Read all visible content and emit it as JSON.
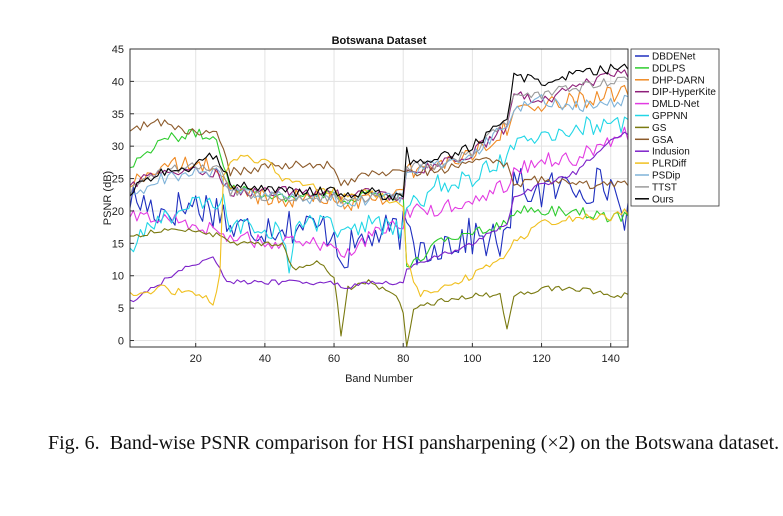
{
  "figure": {
    "caption_label": "Fig. 6.",
    "caption_text": "Band-wise PSNR comparison for HSI pansharpening (×2) on the Botswana dataset."
  },
  "chart_data": {
    "type": "line",
    "title": "Botswana Dataset",
    "xlabel": "Band Number",
    "ylabel": "PSNR (dB)",
    "xlim": [
      1,
      145
    ],
    "ylim": [
      -1,
      45
    ],
    "xticks": [
      20,
      40,
      60,
      80,
      100,
      120,
      140
    ],
    "yticks": [
      0,
      5,
      10,
      15,
      20,
      25,
      30,
      35,
      40,
      45
    ],
    "grid": true,
    "legend_position": "right-outside-top",
    "series": [
      {
        "name": "DBDENet",
        "color": "#1f2fbf",
        "knots": [
          [
            1,
            22
          ],
          [
            10,
            20
          ],
          [
            20,
            21
          ],
          [
            28,
            20
          ],
          [
            30,
            17
          ],
          [
            45,
            18
          ],
          [
            60,
            17
          ],
          [
            62,
            13
          ],
          [
            70,
            16
          ],
          [
            80,
            17
          ],
          [
            84,
            14
          ],
          [
            90,
            15
          ],
          [
            100,
            16
          ],
          [
            110,
            15
          ],
          [
            112,
            24
          ],
          [
            120,
            23
          ],
          [
            130,
            24
          ],
          [
            140,
            24
          ],
          [
            145,
            19
          ]
        ],
        "noise": 3.0
      },
      {
        "name": "DDLPS",
        "color": "#2ecc2e",
        "knots": [
          [
            1,
            27
          ],
          [
            10,
            31
          ],
          [
            20,
            32
          ],
          [
            26,
            31
          ],
          [
            30,
            24
          ],
          [
            45,
            22
          ],
          [
            60,
            23
          ],
          [
            62,
            21
          ],
          [
            70,
            23
          ],
          [
            80,
            22
          ],
          [
            81,
            11
          ],
          [
            90,
            15
          ],
          [
            100,
            17
          ],
          [
            110,
            18
          ],
          [
            112,
            20
          ],
          [
            120,
            20
          ],
          [
            130,
            20
          ],
          [
            140,
            19
          ],
          [
            145,
            19
          ]
        ],
        "noise": 0.8
      },
      {
        "name": "DHP-DARN",
        "color": "#f08a24",
        "knots": [
          [
            1,
            24
          ],
          [
            10,
            27
          ],
          [
            20,
            27
          ],
          [
            26,
            27
          ],
          [
            30,
            23
          ],
          [
            45,
            22
          ],
          [
            60,
            22
          ],
          [
            62,
            21
          ],
          [
            70,
            22
          ],
          [
            80,
            23
          ],
          [
            81,
            26
          ],
          [
            90,
            27
          ],
          [
            100,
            29
          ],
          [
            110,
            33
          ],
          [
            112,
            36
          ],
          [
            120,
            36
          ],
          [
            130,
            37
          ],
          [
            140,
            38
          ],
          [
            145,
            38
          ]
        ],
        "noise": 1.4
      },
      {
        "name": "DIP-HyperKite",
        "color": "#8e1f7a",
        "knots": [
          [
            1,
            24
          ],
          [
            10,
            26
          ],
          [
            20,
            26
          ],
          [
            26,
            26
          ],
          [
            30,
            23
          ],
          [
            45,
            23
          ],
          [
            60,
            23
          ],
          [
            62,
            22
          ],
          [
            70,
            23
          ],
          [
            80,
            22
          ],
          [
            81,
            26
          ],
          [
            90,
            27
          ],
          [
            100,
            29
          ],
          [
            110,
            33
          ],
          [
            112,
            38
          ],
          [
            120,
            37
          ],
          [
            130,
            39
          ],
          [
            140,
            41
          ],
          [
            145,
            41
          ]
        ],
        "noise": 0.8
      },
      {
        "name": "DMLD-Net",
        "color": "#e23be2",
        "knots": [
          [
            1,
            19
          ],
          [
            10,
            19
          ],
          [
            20,
            18
          ],
          [
            30,
            16
          ],
          [
            45,
            15
          ],
          [
            60,
            15
          ],
          [
            62,
            13
          ],
          [
            70,
            16
          ],
          [
            80,
            18
          ],
          [
            81,
            20
          ],
          [
            90,
            20
          ],
          [
            100,
            22
          ],
          [
            110,
            24
          ],
          [
            112,
            26
          ],
          [
            120,
            28
          ],
          [
            130,
            28
          ],
          [
            140,
            31
          ],
          [
            145,
            32
          ]
        ],
        "noise": 1.2
      },
      {
        "name": "GPPNN",
        "color": "#22d6e6",
        "knots": [
          [
            1,
            14
          ],
          [
            10,
            19
          ],
          [
            20,
            21
          ],
          [
            28,
            21
          ],
          [
            30,
            18
          ],
          [
            45,
            17
          ],
          [
            47,
            10
          ],
          [
            49,
            18
          ],
          [
            60,
            18
          ],
          [
            62,
            16
          ],
          [
            70,
            18
          ],
          [
            80,
            17
          ],
          [
            81,
            20
          ],
          [
            90,
            24
          ],
          [
            100,
            25
          ],
          [
            110,
            28
          ],
          [
            112,
            31
          ],
          [
            120,
            32
          ],
          [
            130,
            33
          ],
          [
            140,
            33
          ],
          [
            145,
            33
          ]
        ],
        "noise": 1.6
      },
      {
        "name": "GS",
        "color": "#7a7a10",
        "knots": [
          [
            1,
            16
          ],
          [
            10,
            17
          ],
          [
            20,
            17
          ],
          [
            28,
            16
          ],
          [
            30,
            15
          ],
          [
            45,
            15
          ],
          [
            48,
            11
          ],
          [
            55,
            12
          ],
          [
            60,
            10
          ],
          [
            62,
            1
          ],
          [
            64,
            8
          ],
          [
            70,
            9
          ],
          [
            78,
            7
          ],
          [
            80,
            4
          ],
          [
            81,
            -1
          ],
          [
            83,
            5
          ],
          [
            90,
            6
          ],
          [
            100,
            7
          ],
          [
            108,
            7
          ],
          [
            110,
            2
          ],
          [
            112,
            7
          ],
          [
            120,
            8
          ],
          [
            130,
            8
          ],
          [
            140,
            7
          ],
          [
            145,
            7
          ]
        ],
        "noise": 0.4
      },
      {
        "name": "GSA",
        "color": "#8c5a2a",
        "knots": [
          [
            1,
            32
          ],
          [
            8,
            34
          ],
          [
            20,
            32
          ],
          [
            26,
            32
          ],
          [
            30,
            26
          ],
          [
            45,
            27
          ],
          [
            60,
            27
          ],
          [
            62,
            24
          ],
          [
            70,
            26
          ],
          [
            80,
            26
          ],
          [
            81,
            26
          ],
          [
            90,
            26
          ],
          [
            100,
            28
          ],
          [
            110,
            27
          ],
          [
            112,
            24
          ],
          [
            120,
            25
          ],
          [
            130,
            24
          ],
          [
            140,
            24
          ],
          [
            145,
            24
          ]
        ],
        "noise": 0.7
      },
      {
        "name": "Indusion",
        "color": "#7d22c9",
        "knots": [
          [
            1,
            6
          ],
          [
            10,
            9
          ],
          [
            20,
            12
          ],
          [
            25,
            13
          ],
          [
            28,
            10
          ],
          [
            30,
            9
          ],
          [
            45,
            9
          ],
          [
            60,
            9
          ],
          [
            62,
            8
          ],
          [
            70,
            9
          ],
          [
            80,
            9
          ],
          [
            81,
            11
          ],
          [
            90,
            13
          ],
          [
            100,
            15
          ],
          [
            110,
            18
          ],
          [
            112,
            22
          ],
          [
            120,
            24
          ],
          [
            130,
            26
          ],
          [
            140,
            31
          ],
          [
            145,
            32
          ]
        ],
        "noise": 0.4
      },
      {
        "name": "PLRDiff",
        "color": "#f0c020",
        "knots": [
          [
            1,
            7
          ],
          [
            10,
            8
          ],
          [
            20,
            7
          ],
          [
            25,
            6
          ],
          [
            27,
            10
          ],
          [
            28,
            25
          ],
          [
            30,
            28
          ],
          [
            40,
            28
          ],
          [
            45,
            25
          ],
          [
            60,
            23
          ],
          [
            62,
            22
          ],
          [
            70,
            23
          ],
          [
            80,
            21
          ],
          [
            81,
            12
          ],
          [
            85,
            7
          ],
          [
            90,
            8
          ],
          [
            100,
            10
          ],
          [
            110,
            13
          ],
          [
            112,
            15
          ],
          [
            120,
            18
          ],
          [
            130,
            19
          ],
          [
            140,
            19
          ],
          [
            145,
            20
          ]
        ],
        "noise": 0.6
      },
      {
        "name": "PSDip",
        "color": "#7fb3d9",
        "knots": [
          [
            1,
            22
          ],
          [
            10,
            25
          ],
          [
            20,
            26
          ],
          [
            26,
            26
          ],
          [
            30,
            23
          ],
          [
            45,
            22
          ],
          [
            60,
            22
          ],
          [
            62,
            21
          ],
          [
            70,
            22
          ],
          [
            80,
            22
          ],
          [
            81,
            26
          ],
          [
            90,
            27
          ],
          [
            100,
            29
          ],
          [
            110,
            33
          ],
          [
            112,
            36
          ],
          [
            120,
            37
          ],
          [
            130,
            36
          ],
          [
            140,
            37
          ],
          [
            145,
            37
          ]
        ],
        "noise": 1.0
      },
      {
        "name": "TTST",
        "color": "#9a9a9a",
        "knots": [
          [
            1,
            23
          ],
          [
            10,
            26
          ],
          [
            20,
            27
          ],
          [
            26,
            27
          ],
          [
            30,
            23
          ],
          [
            45,
            22
          ],
          [
            60,
            22
          ],
          [
            62,
            21
          ],
          [
            70,
            22
          ],
          [
            80,
            22
          ],
          [
            81,
            27
          ],
          [
            90,
            27
          ],
          [
            100,
            29
          ],
          [
            110,
            34
          ],
          [
            112,
            38
          ],
          [
            120,
            38
          ],
          [
            130,
            39
          ],
          [
            140,
            40
          ],
          [
            145,
            40
          ]
        ],
        "noise": 0.8
      },
      {
        "name": "Ours",
        "color": "#000000",
        "knots": [
          [
            1,
            23
          ],
          [
            10,
            26
          ],
          [
            20,
            27
          ],
          [
            26,
            29
          ],
          [
            30,
            24
          ],
          [
            45,
            23
          ],
          [
            60,
            23
          ],
          [
            62,
            22
          ],
          [
            70,
            23
          ],
          [
            80,
            22
          ],
          [
            81,
            30
          ],
          [
            82,
            27
          ],
          [
            90,
            28
          ],
          [
            100,
            30
          ],
          [
            110,
            34
          ],
          [
            112,
            41
          ],
          [
            120,
            40
          ],
          [
            130,
            41
          ],
          [
            140,
            42
          ],
          [
            145,
            42
          ]
        ],
        "noise": 0.8
      }
    ]
  }
}
